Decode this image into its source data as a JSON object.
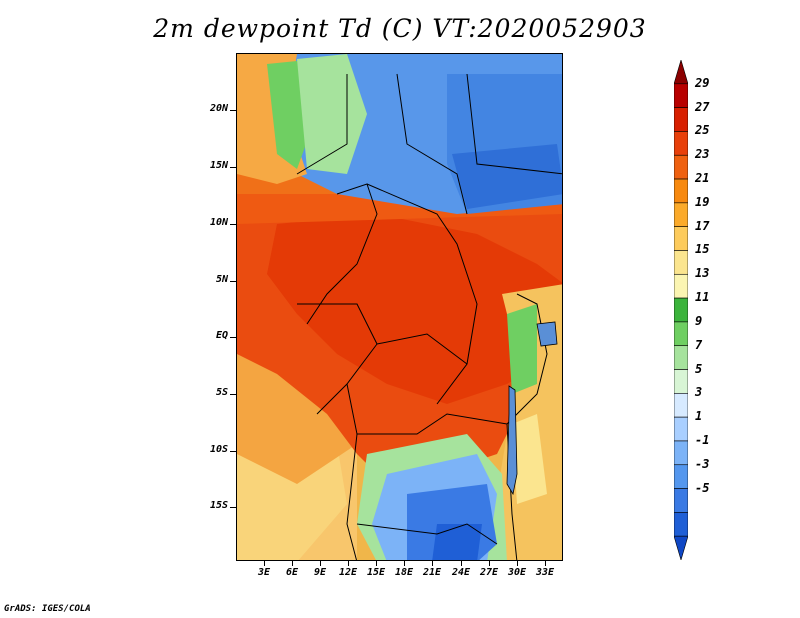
{
  "title": "2m dewpoint Td (C) VT:2020052903",
  "footer": "GrADS: IGES/COLA",
  "lat_labels": [
    "20N",
    "15N",
    "10N",
    "5N",
    "EQ",
    "5S",
    "10S",
    "15S"
  ],
  "lon_labels": [
    "3E",
    "6E",
    "9E",
    "12E",
    "15E",
    "18E",
    "21E",
    "24E",
    "27E",
    "30E",
    "33E"
  ],
  "colorbar": {
    "labels": [
      "29",
      "27",
      "25",
      "23",
      "21",
      "19",
      "17",
      "15",
      "13",
      "11",
      "9",
      "7",
      "5",
      "3",
      "1",
      "-1",
      "-3",
      "-5"
    ],
    "colors": [
      "#8b0000",
      "#b80000",
      "#d81f00",
      "#e8400a",
      "#ef6110",
      "#f7890f",
      "#fbaa2a",
      "#fdcb5c",
      "#fbe58f",
      "#fbf5b2",
      "#3cb43c",
      "#6fcf62",
      "#a6e39d",
      "#d8f5d5",
      "#d7eaff",
      "#a9cfff",
      "#7cb3f7",
      "#5497ee",
      "#3a7ae4",
      "#1f5fd6",
      "#0f47c5"
    ]
  },
  "regions": [
    {
      "name": "dry-north-blue",
      "color": "#4f91e6"
    },
    {
      "name": "humid-central-red",
      "color": "#e8400a"
    },
    {
      "name": "orange-belt",
      "color": "#f07018"
    },
    {
      "name": "south-dry-blue",
      "color": "#3a7ae4"
    }
  ]
}
